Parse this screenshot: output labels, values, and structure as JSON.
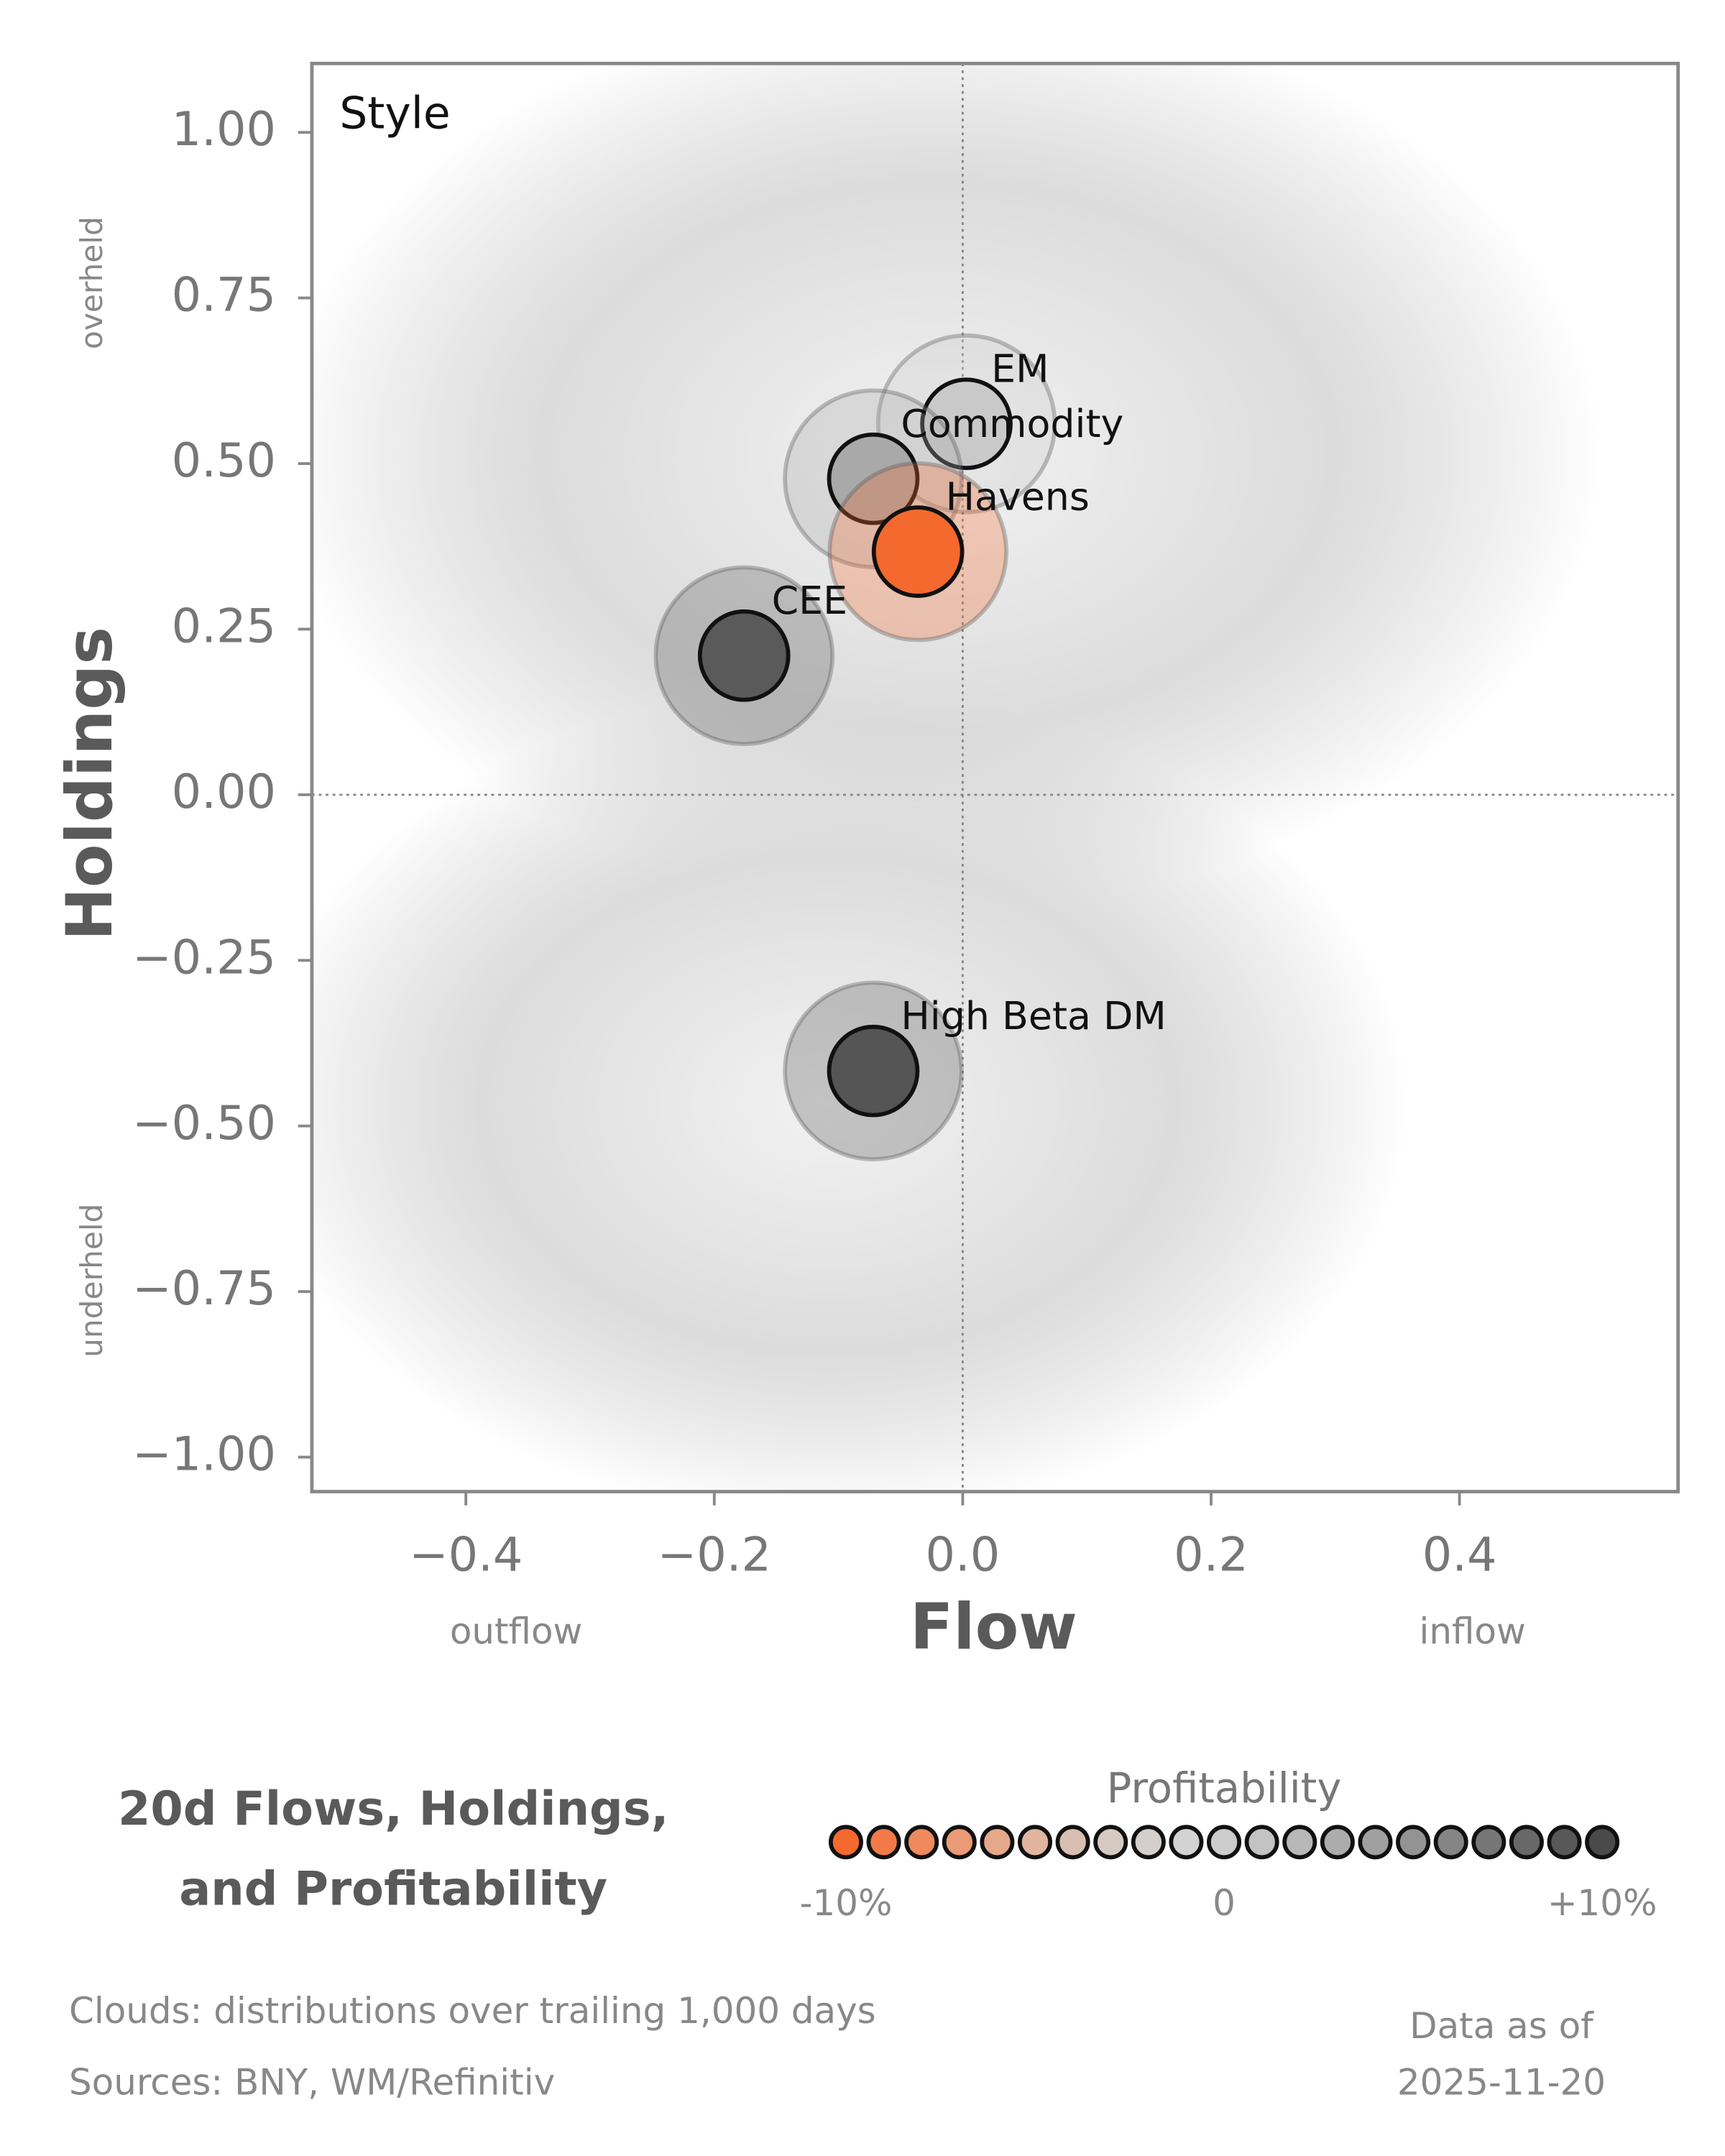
{
  "chart_data": {
    "type": "scatter",
    "panel_label": "Style",
    "x_label": "Flow",
    "y_label": "Holdings",
    "x_low_label": "outflow",
    "x_high_label": "inflow",
    "y_high_label": "overheld",
    "y_low_label": "underheld",
    "xlim": [
      -0.524,
      0.576
    ],
    "ylim": [
      -1.052,
      1.104
    ],
    "xticks": [
      {
        "value": -0.4,
        "label": "−0.4"
      },
      {
        "value": -0.2,
        "label": "−0.2"
      },
      {
        "value": 0,
        "label": "0.0"
      },
      {
        "value": 0.2,
        "label": "0.2"
      },
      {
        "value": 0.4,
        "label": "0.4"
      }
    ],
    "yticks": [
      {
        "value": 1,
        "label": "1.00"
      },
      {
        "value": 0.75,
        "label": "0.75"
      },
      {
        "value": 0.5,
        "label": "0.50"
      },
      {
        "value": 0.25,
        "label": "0.25"
      },
      {
        "value": 0,
        "label": "0.00"
      },
      {
        "value": -0.25,
        "label": "−0.25"
      },
      {
        "value": -0.5,
        "label": "−0.50"
      },
      {
        "value": -0.75,
        "label": "−0.75"
      },
      {
        "value": -1,
        "label": "−1.00"
      }
    ],
    "zero_lines": true,
    "series": [
      {
        "name": "EM",
        "color": "#c9c9c9",
        "x": [
          0.003
        ],
        "values": [
          0.56
        ]
      },
      {
        "name": "Commodity",
        "color": "#a9a9a9",
        "x": [
          -0.072
        ],
        "values": [
          0.477
        ]
      },
      {
        "name": "Havens",
        "color": "#f4692e",
        "x": [
          -0.036
        ],
        "values": [
          0.367
        ]
      },
      {
        "name": "CEE",
        "color": "#5a5a5a",
        "x": [
          -0.176
        ],
        "values": [
          0.21
        ]
      },
      {
        "name": "High Beta DM",
        "color": "#555555",
        "x": [
          -0.072
        ],
        "values": [
          -0.417
        ]
      }
    ]
  },
  "footer": {
    "title_lines": [
      "20d Flows, Holdings,",
      "and Profitability"
    ],
    "colorbar": {
      "title": "Profitability",
      "lim": [
        -10,
        10
      ],
      "ticks": [
        {
          "value": -10,
          "label": "-10%"
        },
        {
          "value": 0,
          "label": "0"
        },
        {
          "value": 10,
          "label": "+10%"
        }
      ],
      "colors": [
        "#f4692e",
        "#f27a48",
        "#ee8a5e",
        "#ea9a75",
        "#e5a88a",
        "#dfb59f",
        "#d9bfb2",
        "#d5c9c2",
        "#d4cfcc",
        "#d3d3d3",
        "#cccccc",
        "#c3c3c3",
        "#b8b8b8",
        "#acacac",
        "#a0a0a0",
        "#939393",
        "#858585",
        "#767676",
        "#686868",
        "#585858",
        "#4a4a4a"
      ]
    },
    "notes": [
      "Clouds:  distributions over trailing 1,000 days",
      "Sources:  BNY, WM/Refinitiv"
    ],
    "date_lines": [
      "Data as of",
      "2025-11-20"
    ]
  }
}
